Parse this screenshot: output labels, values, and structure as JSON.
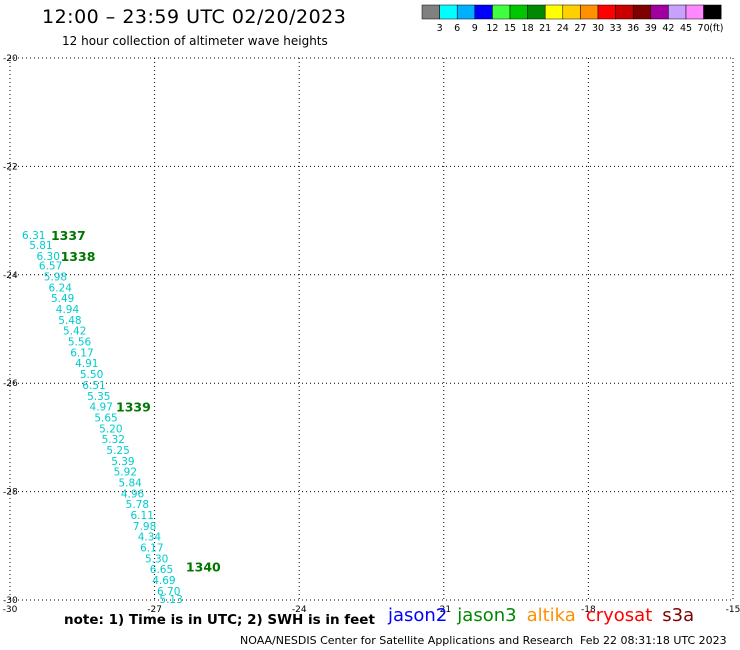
{
  "header": {
    "title": "12:00 – 23:59 UTC 02/20/2023",
    "subtitle": "12 hour collection of altimeter wave heights"
  },
  "legend": {
    "unit": "(ft)",
    "bins": [
      {
        "label": "3",
        "color": "#808080"
      },
      {
        "label": "6",
        "color": "#00ffff"
      },
      {
        "label": "9",
        "color": "#00b0ff"
      },
      {
        "label": "12",
        "color": "#0000ff"
      },
      {
        "label": "15",
        "color": "#40ff40"
      },
      {
        "label": "18",
        "color": "#00c800"
      },
      {
        "label": "21",
        "color": "#008800"
      },
      {
        "label": "24",
        "color": "#ffff00"
      },
      {
        "label": "27",
        "color": "#ffd000"
      },
      {
        "label": "30",
        "color": "#ff9000"
      },
      {
        "label": "33",
        "color": "#ff0000"
      },
      {
        "label": "36",
        "color": "#c80000"
      },
      {
        "label": "39",
        "color": "#800000"
      },
      {
        "label": "42",
        "color": "#a000a0"
      },
      {
        "label": "45",
        "color": "#c8a0ff"
      },
      {
        "label": "70",
        "color": "#ff88ff"
      },
      {
        "label": "",
        "color": "#000000"
      }
    ]
  },
  "chart_data": {
    "type": "scatter",
    "title": "12:00 – 23:59 UTC 02/20/2023",
    "subtitle": "12 hour collection of altimeter wave heights",
    "xlim": [
      -30,
      -15
    ],
    "ylim": [
      -30,
      -20
    ],
    "xticks": [
      -30,
      -27,
      -24,
      -21,
      -18,
      -15
    ],
    "yticks": [
      -20,
      -22,
      -24,
      -26,
      -28,
      -30
    ],
    "grid": true,
    "track_color": "#00cccc",
    "time_label_color": "#007700",
    "points": [
      {
        "x": -29.75,
        "y": -23.28,
        "swh": "6.31"
      },
      {
        "x": -29.6,
        "y": -23.47,
        "swh": "5.81"
      },
      {
        "x": -29.45,
        "y": -23.67,
        "swh": "6.30"
      },
      {
        "x": -29.4,
        "y": -23.85,
        "swh": "6.57"
      },
      {
        "x": -29.3,
        "y": -24.05,
        "swh": "5.98"
      },
      {
        "x": -29.2,
        "y": -24.25,
        "swh": "6.24"
      },
      {
        "x": -29.15,
        "y": -24.45,
        "swh": "5.49"
      },
      {
        "x": -29.05,
        "y": -24.65,
        "swh": "4.94"
      },
      {
        "x": -29.0,
        "y": -24.85,
        "swh": "5.48"
      },
      {
        "x": -28.9,
        "y": -25.05,
        "swh": "5.42"
      },
      {
        "x": -28.8,
        "y": -25.25,
        "swh": "5.56"
      },
      {
        "x": -28.75,
        "y": -25.45,
        "swh": "6.17"
      },
      {
        "x": -28.65,
        "y": -25.65,
        "swh": "4.91"
      },
      {
        "x": -28.55,
        "y": -25.85,
        "swh": "5.50"
      },
      {
        "x": -28.5,
        "y": -26.05,
        "swh": "6.51"
      },
      {
        "x": -28.4,
        "y": -26.25,
        "swh": "5.35"
      },
      {
        "x": -28.35,
        "y": -26.45,
        "swh": "4.97"
      },
      {
        "x": -28.25,
        "y": -26.65,
        "swh": "5.65"
      },
      {
        "x": -28.15,
        "y": -26.85,
        "swh": "5.20"
      },
      {
        "x": -28.1,
        "y": -27.05,
        "swh": "5.32"
      },
      {
        "x": -28.0,
        "y": -27.25,
        "swh": "5.25"
      },
      {
        "x": -27.9,
        "y": -27.45,
        "swh": "5.39"
      },
      {
        "x": -27.85,
        "y": -27.65,
        "swh": "5.92"
      },
      {
        "x": -27.75,
        "y": -27.85,
        "swh": "5.84"
      },
      {
        "x": -27.7,
        "y": -28.05,
        "swh": "4.96"
      },
      {
        "x": -27.6,
        "y": -28.25,
        "swh": "5.78"
      },
      {
        "x": -27.5,
        "y": -28.45,
        "swh": "6.11"
      },
      {
        "x": -27.45,
        "y": -28.65,
        "swh": "7.98"
      },
      {
        "x": -27.35,
        "y": -28.85,
        "swh": "4.34"
      },
      {
        "x": -27.3,
        "y": -29.05,
        "swh": "6.17"
      },
      {
        "x": -27.2,
        "y": -29.25,
        "swh": "5.30"
      },
      {
        "x": -27.1,
        "y": -29.45,
        "swh": "6.65"
      },
      {
        "x": -27.05,
        "y": -29.65,
        "swh": "4.69"
      },
      {
        "x": -26.95,
        "y": -29.85,
        "swh": "6.70"
      },
      {
        "x": -26.9,
        "y": -30.0,
        "swh": "5.13"
      }
    ],
    "time_labels": [
      {
        "x": -29.15,
        "y": -23.28,
        "text": "1337"
      },
      {
        "x": -28.95,
        "y": -23.67,
        "text": "1338"
      },
      {
        "x": -27.8,
        "y": -26.45,
        "text": "1339"
      },
      {
        "x": -26.35,
        "y": -29.4,
        "text": "1340"
      }
    ]
  },
  "footer": {
    "note": "note: 1) Time is in UTC; 2) SWH is in feet",
    "missions": [
      {
        "label": "jason2",
        "color": "#0000ff"
      },
      {
        "label": "jason3",
        "color": "#008800"
      },
      {
        "label": "altika",
        "color": "#ff9000"
      },
      {
        "label": "cryosat",
        "color": "#ff0000"
      },
      {
        "label": "s3a",
        "color": "#800000"
      }
    ],
    "credit": "NOAA/NESDIS Center for Satellite Applications and Research",
    "timestamp": "Feb 22 08:31:18 UTC 2023"
  }
}
